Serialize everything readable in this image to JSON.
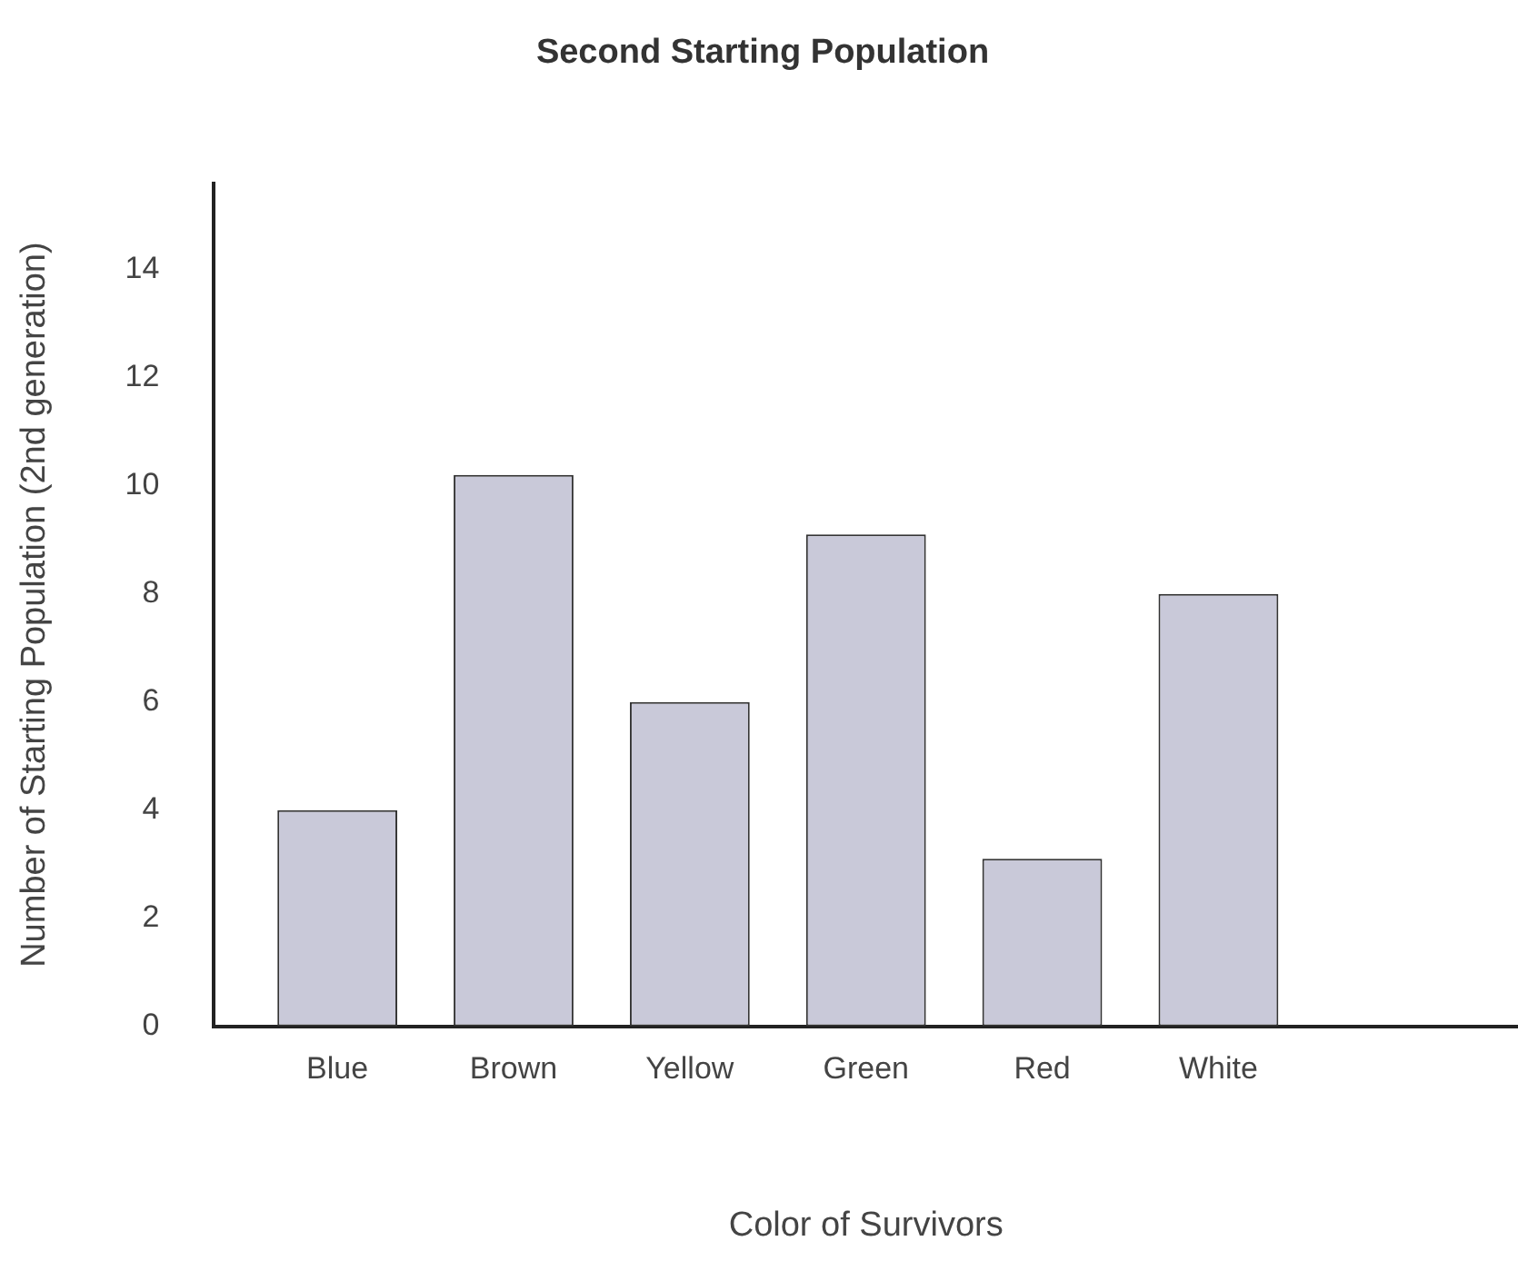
{
  "chart_data": {
    "type": "bar",
    "title": "Second Starting Population",
    "xlabel": "Color of Survivors",
    "ylabel": "Number of Starting Population (2nd generation)",
    "categories": [
      "Blue",
      "Brown",
      "Yellow",
      "Green",
      "Red",
      "White"
    ],
    "values": [
      4,
      10.2,
      6,
      9.1,
      3.1,
      8
    ],
    "color": "#c9c9d9",
    "ylim": [
      0,
      15.6
    ],
    "yticks": [
      0,
      2,
      4,
      6,
      8,
      10,
      12,
      14
    ],
    "grid": false,
    "legend": false
  }
}
